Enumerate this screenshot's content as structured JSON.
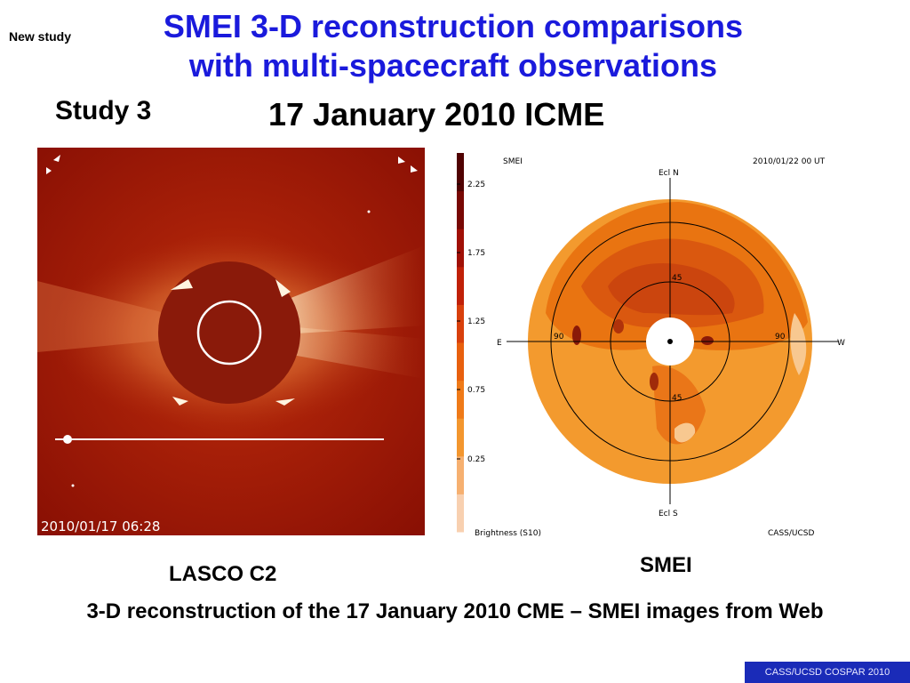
{
  "slide": {
    "tag": "New study",
    "title_line1": "SMEI 3-D reconstruction comparisons",
    "title_line2": "with multi-spacecraft observations",
    "study": "Study 3",
    "subtitle": "17 January 2010 ICME",
    "caption": "3-D reconstruction of the 17 January 2010 CME – SMEI images from Web",
    "footer": "CASS/UCSD COSPAR 2010",
    "title_color": "#1a1adc"
  },
  "lasco": {
    "label": "LASCO C2",
    "timestamp": "2010/01/17  06:28",
    "icon": "coronagraph-image"
  },
  "smei": {
    "label": "SMEI",
    "panel_title": "SMEI",
    "date": "2010/01/22  00  UT",
    "north": "Ecl N",
    "south": "Ecl S",
    "east": "E",
    "west": "W",
    "lat_top": "45",
    "lat_bottom": "45",
    "lon_left": "90",
    "lon_right": "90",
    "brightness_label": "Brightness (S10)",
    "credit": "CASS/UCSD",
    "scale_ticks": [
      "2.25",
      "1.75",
      "1.25",
      "0.75",
      "0.25"
    ],
    "scale_colors": [
      "#f8d0b0",
      "#f6b070",
      "#f3962e",
      "#ef7a18",
      "#e8600e",
      "#d8400c",
      "#c02008",
      "#a01006",
      "#780804",
      "#500202"
    ]
  }
}
